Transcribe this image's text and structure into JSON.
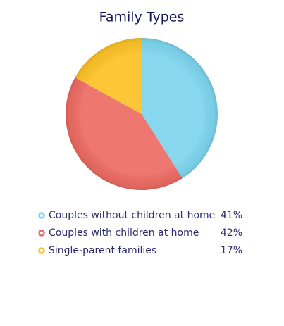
{
  "chart_data": {
    "type": "pie",
    "title": "Family Types",
    "categories": [
      "Couples without children at home",
      "Couples with children at home",
      "Single-parent families"
    ],
    "values": [
      41,
      42,
      17
    ],
    "value_labels": [
      "41%",
      "42%",
      "17%"
    ],
    "colors": [
      "#7dd5ee",
      "#ec6b63",
      "#fcc125"
    ]
  }
}
